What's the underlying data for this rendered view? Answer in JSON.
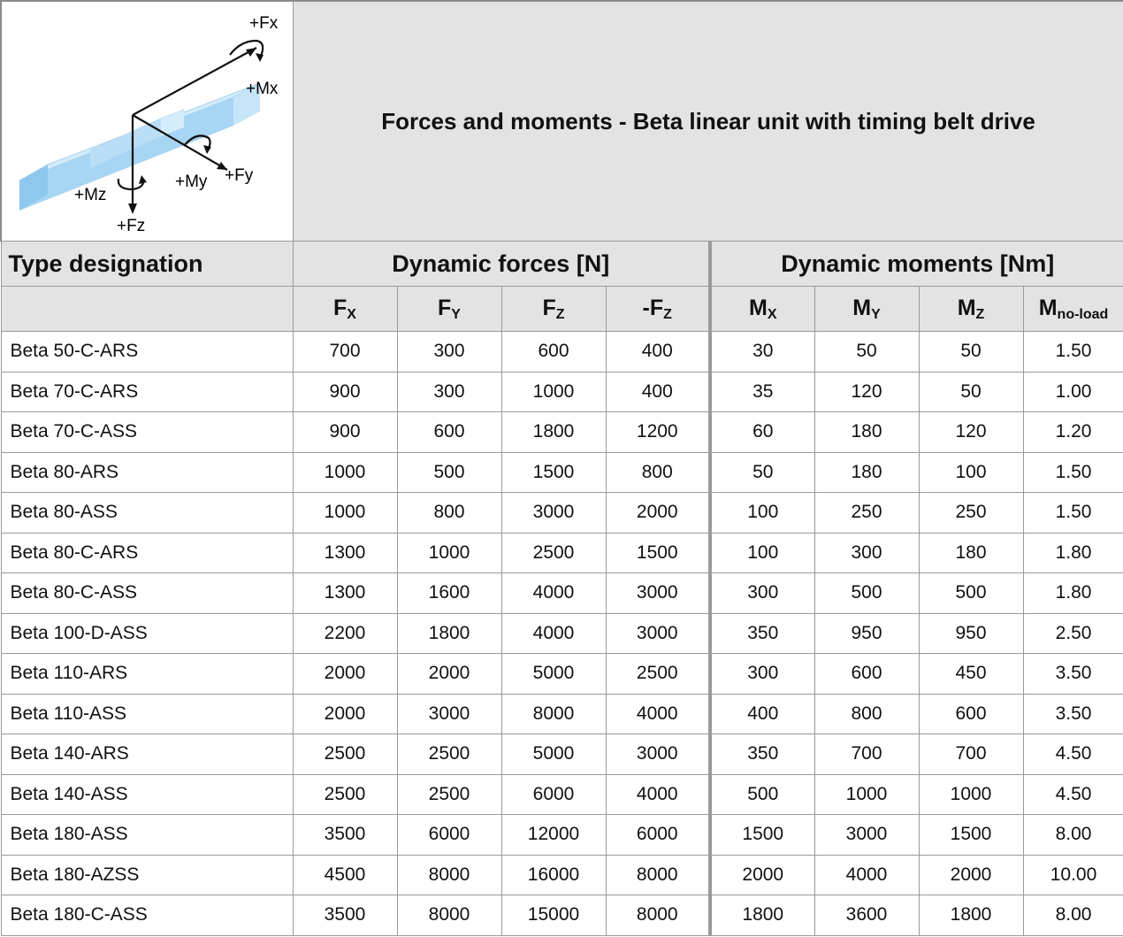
{
  "title": "Forces and moments - Beta linear unit with timing belt drive",
  "diagram": {
    "labels": [
      "+Fx",
      "+Mx",
      "+My",
      "+Fy",
      "+Mz",
      "+Fz"
    ]
  },
  "header": {
    "type_designation": "Type designation",
    "dynamic_forces": "Dynamic forces [N]",
    "dynamic_moments": "Dynamic moments [Nm]"
  },
  "columns": [
    {
      "main": "F",
      "sub": "X"
    },
    {
      "main": "F",
      "sub": "Y"
    },
    {
      "main": "F",
      "sub": "Z"
    },
    {
      "main": "-F",
      "sub": "Z"
    },
    {
      "main": "M",
      "sub": "X"
    },
    {
      "main": "M",
      "sub": "Y"
    },
    {
      "main": "M",
      "sub": "Z"
    },
    {
      "main": "M",
      "sub": "no-load"
    }
  ],
  "rows": [
    {
      "name": "Beta 50-C-ARS",
      "values": [
        "700",
        "300",
        "600",
        "400",
        "30",
        "50",
        "50",
        "1.50"
      ]
    },
    {
      "name": "Beta 70-C-ARS",
      "values": [
        "900",
        "300",
        "1000",
        "400",
        "35",
        "120",
        "50",
        "1.00"
      ]
    },
    {
      "name": "Beta 70-C-ASS",
      "values": [
        "900",
        "600",
        "1800",
        "1200",
        "60",
        "180",
        "120",
        "1.20"
      ]
    },
    {
      "name": "Beta 80-ARS",
      "values": [
        "1000",
        "500",
        "1500",
        "800",
        "50",
        "180",
        "100",
        "1.50"
      ]
    },
    {
      "name": "Beta 80-ASS",
      "values": [
        "1000",
        "800",
        "3000",
        "2000",
        "100",
        "250",
        "250",
        "1.50"
      ]
    },
    {
      "name": "Beta 80-C-ARS",
      "values": [
        "1300",
        "1000",
        "2500",
        "1500",
        "100",
        "300",
        "180",
        "1.80"
      ]
    },
    {
      "name": "Beta 80-C-ASS",
      "values": [
        "1300",
        "1600",
        "4000",
        "3000",
        "300",
        "500",
        "500",
        "1.80"
      ]
    },
    {
      "name": "Beta 100-D-ASS",
      "values": [
        "2200",
        "1800",
        "4000",
        "3000",
        "350",
        "950",
        "950",
        "2.50"
      ]
    },
    {
      "name": "Beta 110-ARS",
      "values": [
        "2000",
        "2000",
        "5000",
        "2500",
        "300",
        "600",
        "450",
        "3.50"
      ]
    },
    {
      "name": "Beta 110-ASS",
      "values": [
        "2000",
        "3000",
        "8000",
        "4000",
        "400",
        "800",
        "600",
        "3.50"
      ]
    },
    {
      "name": "Beta 140-ARS",
      "values": [
        "2500",
        "2500",
        "5000",
        "3000",
        "350",
        "700",
        "700",
        "4.50"
      ]
    },
    {
      "name": "Beta 140-ASS",
      "values": [
        "2500",
        "2500",
        "6000",
        "4000",
        "500",
        "1000",
        "1000",
        "4.50"
      ]
    },
    {
      "name": "Beta 180-ASS",
      "values": [
        "3500",
        "6000",
        "12000",
        "6000",
        "1500",
        "3000",
        "1500",
        "8.00"
      ]
    },
    {
      "name": "Beta 180-AZSS",
      "values": [
        "4500",
        "8000",
        "16000",
        "8000",
        "2000",
        "4000",
        "2000",
        "10.00"
      ]
    },
    {
      "name": "Beta 180-C-ASS",
      "values": [
        "3500",
        "8000",
        "15000",
        "8000",
        "1800",
        "3600",
        "1800",
        "8.00"
      ]
    }
  ]
}
